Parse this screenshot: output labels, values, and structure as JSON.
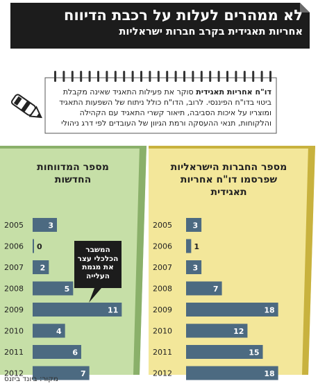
{
  "header": {
    "headline": "לא ממהרים לעלות על רכבת הדיווח",
    "subheadline": "אחריות תאגידית בקרב חברות ישראליות"
  },
  "note": {
    "bold": "דו\"ח אחריות תאגידית",
    "text": " סוקר את פעילות התאגיד שאינה מקבלת ביטוי בדו\"ח הפיננסי. לרוב, הדו\"ח כולל ניתוח של השפעות התאגיד ומוצריו על איכות הסביבה, תיאור קשרי התאגיד עם הקהילה והלקוחות, תנאי ההעסקה ורמת הגיוון של העובדים לפי דרג ניהולי"
  },
  "annotation": {
    "line1": "המשבר",
    "line2": "הכלכלי עצר",
    "line3": "את מגמת",
    "line4": "העלייה"
  },
  "source": "מקור: ביונד ביזנס",
  "colors": {
    "left_panel": "#c6dfa7",
    "left_panel_border": "#8ab06a",
    "right_panel": "#f3e79a",
    "right_panel_border": "#c8b23e",
    "bar": "#4c6a81",
    "dark": "#1c1c1c"
  },
  "icons": [
    "pen-icon",
    "spiral-binding-icon"
  ],
  "chart_data": [
    {
      "type": "bar",
      "orientation": "horizontal",
      "title": "מספר המדווחות החדשות",
      "title_lines": [
        "מספר המדווחות",
        "החדשות"
      ],
      "categories": [
        "2005",
        "2006",
        "2007",
        "2008",
        "2009",
        "2010",
        "2011",
        "2012"
      ],
      "values": [
        3,
        0,
        2,
        5,
        11,
        4,
        6,
        7
      ],
      "xlim": [
        0,
        12
      ]
    },
    {
      "type": "bar",
      "orientation": "horizontal",
      "title": "מספר החברות הישראליות שפרסמו דו\"ח אחריות תאגידית",
      "title_lines": [
        "מספר החברות הישראליות",
        "שפרסמו דו\"ח אחריות",
        "תאגידית"
      ],
      "categories": [
        "2005",
        "2006",
        "2007",
        "2008",
        "2009",
        "2010",
        "2011",
        "2012"
      ],
      "values": [
        3,
        1,
        3,
        7,
        18,
        12,
        15,
        18
      ],
      "xlim": [
        0,
        19
      ]
    }
  ]
}
